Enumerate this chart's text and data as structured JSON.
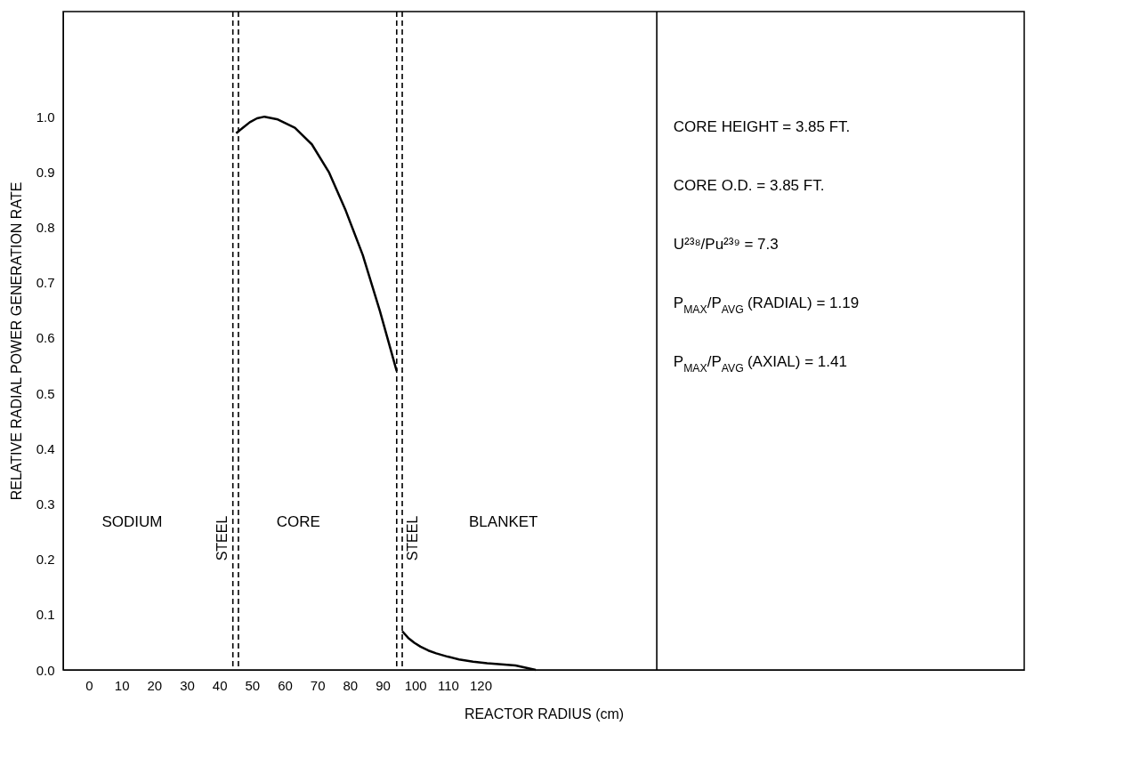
{
  "chart_data": {
    "type": "line",
    "xlabel": "REACTOR RADIUS (cm)",
    "ylabel": "RELATIVE RADIAL POWER GENERATION RATE",
    "series": [
      {
        "color": "#000000",
        "x": [
          45.1,
          47.2,
          49.3,
          51.5,
          53.8,
          57.9,
          63.1,
          68.3,
          73.5,
          78.7,
          83.9,
          89.1,
          94.3
        ],
        "values": [
          0.97,
          0.98,
          0.99,
          0.997,
          1.0,
          0.995,
          0.98,
          0.95,
          0.9,
          0.83,
          0.75,
          0.65,
          0.54
        ]
      },
      {
        "color": "#000000",
        "x": [
          96.0,
          97.8,
          99.7,
          101.6,
          104.0,
          106.4,
          109.9,
          113.4,
          117.7,
          122.0,
          126.4,
          130.7,
          136.9
        ],
        "values": [
          0.07,
          0.058,
          0.049,
          0.042,
          0.035,
          0.03,
          0.024,
          0.019,
          0.015,
          0.012,
          0.01,
          0.008,
          0.0
        ]
      }
    ],
    "xlim": [
      -7.9,
      286.6
    ],
    "ylim": [
      0,
      1.19
    ],
    "xticks": [
      0,
      10,
      20,
      30,
      40,
      50,
      60,
      70,
      80,
      90,
      100,
      110,
      120
    ],
    "yticks": [
      {
        "value": 0,
        "label": "0.0"
      },
      0.1,
      0.2,
      0.3,
      0.4,
      0.5,
      0.6,
      0.7,
      0.8,
      0.9,
      {
        "value": 1,
        "label": "1.0"
      }
    ],
    "ref_lines": [
      {
        "axis": "x",
        "value": 44.1,
        "label": "STEEL",
        "line_style": "dashed",
        "color": "#000000"
      },
      {
        "axis": "x",
        "value": 45.8,
        "line_style": "dashed",
        "color": "#000000"
      },
      {
        "axis": "x",
        "value": 94.3,
        "line_style": "dashed",
        "color": "#000000"
      },
      {
        "axis": "x",
        "value": 96.0,
        "label": "STEEL",
        "line_style": "dashed",
        "color": "#000000"
      },
      {
        "axis": "x",
        "value": 174.0,
        "line_style": "solid",
        "color": "#000000"
      }
    ],
    "annotations": [
      "SODIUM",
      "CORE",
      "BLANKET",
      "CORE HEIGHT = 3.85 FT.",
      "CORE O.D. = 3.85 FT.",
      "U²³⁸/Pu²³⁹ = 7.3",
      "P$_{MAX}$/P$_{AVG}$ (RADIAL) = 1.19",
      "P$_{MAX}$/P$_{AVG}$ (AXIAL) = 1.41"
    ],
    "grid": false,
    "marker": "none",
    "line_style": "solid"
  }
}
